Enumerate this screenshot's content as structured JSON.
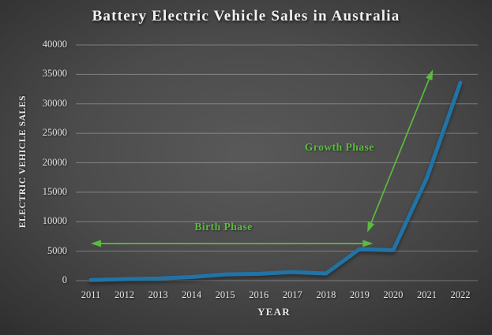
{
  "chart_data": {
    "type": "line",
    "title": "Battery Electric Vehicle Sales in Australia",
    "xlabel": "YEAR",
    "ylabel": "ELECTRIC VEHICLE SALES",
    "x": [
      2011,
      2012,
      2013,
      2014,
      2015,
      2016,
      2017,
      2018,
      2019,
      2020,
      2021,
      2022
    ],
    "values": [
      100,
      250,
      350,
      600,
      1050,
      1150,
      1450,
      1200,
      5350,
      5150,
      17400,
      33600
    ],
    "ylim": [
      0,
      40000
    ],
    "yticks": [
      0,
      5000,
      10000,
      15000,
      20000,
      25000,
      30000,
      35000,
      40000
    ],
    "grid": true,
    "legend": false,
    "line_color": "#2273a5",
    "annotation_color": "#5bbb3e",
    "annotations": [
      {
        "label": "Birth Phase",
        "type": "double-arrow",
        "x1": 2011.0,
        "y1": 6300,
        "x2": 2019.4,
        "y2": 6300,
        "label_x": 2014.95,
        "label_y": 9100
      },
      {
        "label": "Growth Phase",
        "type": "double-arrow",
        "x1": 2019.23,
        "y1": 8200,
        "x2": 2021.18,
        "y2": 35800,
        "label_x": 2018.4,
        "label_y": 22600
      }
    ]
  }
}
